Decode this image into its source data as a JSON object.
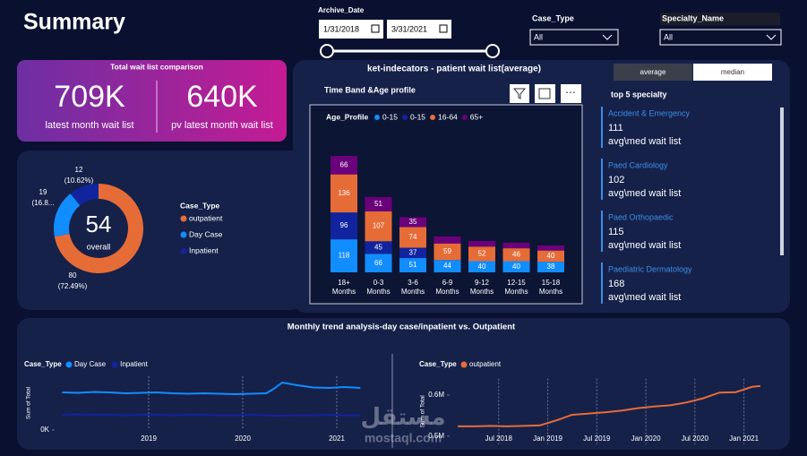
{
  "header": {
    "title": "Summary"
  },
  "filters": {
    "archive_date": {
      "label": "Archive_Date",
      "start": "1/31/2018",
      "end": "3/31/2021"
    },
    "case_type": {
      "label": "Case_Type",
      "value": "All"
    },
    "specialty_name": {
      "label": "Specialty_Name",
      "value": "All"
    }
  },
  "kpi": {
    "title": "Total wait list comparison",
    "items": [
      {
        "value": "709K",
        "label": "latest month wait list"
      },
      {
        "value": "640K",
        "label": "pv latest month wait list"
      }
    ]
  },
  "panel": {
    "title": "ket-indecators - patient wait list(average)",
    "toggle": [
      "average",
      "median"
    ]
  },
  "specialty": {
    "title": "top 5 specialty",
    "items": [
      {
        "name": "Accident & Emergency",
        "value": 111,
        "label": "avg\\med wait list"
      },
      {
        "name": "Paed Cardiology",
        "value": 102,
        "label": "avg\\med wait list"
      },
      {
        "name": "Paed Orthopaedic",
        "value": 115,
        "label": "avg\\med wait list"
      },
      {
        "name": "Paediatric Dermatology",
        "value": 168,
        "label": "avg\\med wait list"
      }
    ]
  },
  "watermark": {
    "arabic": "مستقل",
    "latin": "mostaql.com"
  },
  "chart_data": [
    {
      "type": "donut",
      "legend_title": "Case_Type",
      "center_value": 54,
      "center_label": "overall",
      "categories": [
        "outpatient",
        "Day Case",
        "Inpatient"
      ],
      "values": [
        80,
        19,
        12
      ],
      "percent_labels": [
        "(72.49%)",
        "(16.8...",
        "(10.62%)"
      ],
      "colors": [
        "#e66c37",
        "#118dff",
        "#12239e"
      ]
    },
    {
      "type": "stacked_bar",
      "title": "Time Band &Age profile",
      "legend_title": "Age_Profile",
      "categories": [
        "18+ Months",
        "0-3 Months",
        "3-6 Months",
        "6-9 Months",
        "9-12 Months",
        "12-15 Months",
        "15-18 Months"
      ],
      "series": [
        {
          "name": "0-15",
          "color": "#118dff",
          "values": [
            118,
            66,
            51,
            44,
            40,
            40,
            38
          ]
        },
        {
          "name": "0-15",
          "color": "#12239e",
          "values": [
            96,
            45,
            37,
            null,
            null,
            null,
            null
          ]
        },
        {
          "name": "16-64",
          "color": "#e66c37",
          "values": [
            136,
            107,
            74,
            59,
            52,
            46,
            40
          ]
        },
        {
          "name": "65+",
          "color": "#6b007b",
          "values": [
            66,
            51,
            35,
            25,
            20,
            20,
            18
          ]
        }
      ]
    },
    {
      "type": "line",
      "title": "Monthly trend analysis-day case/inpatient vs. Outpatient",
      "legend_title": "Case_Type",
      "y_label": "Sum of Total",
      "x": [
        2018.08,
        2018.25,
        2018.42,
        2018.58,
        2018.75,
        2018.92,
        2019.08,
        2019.25,
        2019.42,
        2019.58,
        2019.75,
        2019.92,
        2020.08,
        2020.25,
        2020.33,
        2020.42,
        2020.58,
        2020.75,
        2020.92,
        2021.08,
        2021.25
      ],
      "xlim": [
        2018.0,
        2021.4
      ],
      "xticks": [
        2019,
        2020,
        2021
      ],
      "ylim": [
        0,
        60000
      ],
      "yticks": [
        {
          "value": 0,
          "label": "0K"
        }
      ],
      "grid": true,
      "series": [
        {
          "name": "Day Case",
          "color": "#118dff",
          "values": [
            42000,
            41500,
            42500,
            42000,
            41000,
            41500,
            42000,
            41000,
            40500,
            41000,
            40500,
            40000,
            40500,
            41000,
            46000,
            53000,
            50000,
            47500,
            47000,
            48000,
            47000
          ]
        },
        {
          "name": "Inpatient",
          "color": "#12239e",
          "values": [
            17000,
            17500,
            17000,
            17000,
            16500,
            17000,
            17000,
            16500,
            17000,
            17000,
            16500,
            16500,
            17000,
            16500,
            16000,
            16000,
            16500,
            16500,
            17000,
            16500,
            16500
          ]
        }
      ]
    },
    {
      "type": "line",
      "legend_title": "Case_Type",
      "y_label": "Sum of Total",
      "x": [
        "2018-02",
        "2018-04",
        "2018-06",
        "2018-08",
        "2018-10",
        "2018-12",
        "2019-02",
        "2019-04",
        "2019-06",
        "2019-08",
        "2019-10",
        "2019-12",
        "2020-02",
        "2020-04",
        "2020-06",
        "2020-08",
        "2020-10",
        "2020-12",
        "2021-02",
        "2021-03"
      ],
      "xlim": [
        "2018-01",
        "2021-04"
      ],
      "xticks": [
        {
          "value": "2018-07",
          "label": "Jul 2018"
        },
        {
          "value": "2019-01",
          "label": "Jan 2019"
        },
        {
          "value": "2019-07",
          "label": "Jul 2019"
        },
        {
          "value": "2020-01",
          "label": "Jan 2020"
        },
        {
          "value": "2020-07",
          "label": "Jul 2020"
        },
        {
          "value": "2021-01",
          "label": "Jan 2021"
        }
      ],
      "ylim": [
        480000,
        640000
      ],
      "yticks": [
        {
          "value": 500000,
          "label": "0.5M"
        },
        {
          "value": 600000,
          "label": "0.6M"
        }
      ],
      "grid": true,
      "series": [
        {
          "name": "outpatient",
          "color": "#e66c37",
          "values": [
            524000,
            524000,
            525000,
            524000,
            525000,
            526000,
            538000,
            552000,
            555000,
            558000,
            562000,
            568000,
            572000,
            575000,
            582000,
            592000,
            606000,
            607000,
            620000,
            622000
          ]
        }
      ]
    }
  ]
}
